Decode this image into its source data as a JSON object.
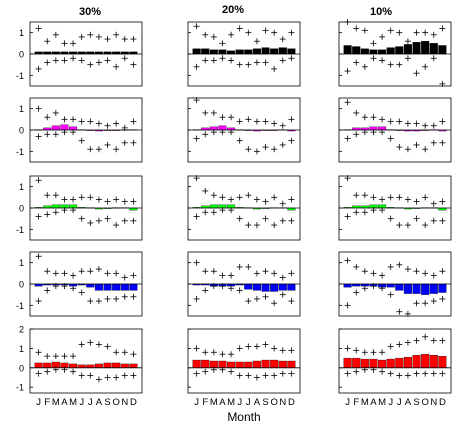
{
  "figure": {
    "column_titles": [
      "30%",
      "20%",
      "10%"
    ],
    "xlabel": "Month",
    "month_ticks": [
      "J",
      "F",
      "M",
      "A",
      "M",
      "J",
      "J",
      "A",
      "S",
      "O",
      "N",
      "D"
    ]
  },
  "chart_data": [
    {
      "type": "bar",
      "column": "30%",
      "row": 1,
      "color": "#000000",
      "ylim": [
        -1.5,
        1.5
      ],
      "yticks": [
        -1,
        0,
        1
      ],
      "categories": [
        "J",
        "F",
        "M",
        "A",
        "M",
        "J",
        "J",
        "A",
        "S",
        "O",
        "N",
        "D"
      ],
      "values": [
        0.1,
        0.1,
        0.1,
        0.1,
        0.1,
        0.1,
        0.1,
        0.1,
        0.1,
        0.1,
        0.1,
        0.1
      ],
      "upper": [
        1.2,
        0.6,
        0.9,
        0.5,
        0.5,
        0.8,
        0.9,
        0.8,
        0.7,
        0.9,
        0.7,
        0.7
      ],
      "lower": [
        -0.7,
        -0.4,
        -0.3,
        -0.3,
        -0.2,
        -0.3,
        -0.5,
        -0.4,
        -0.3,
        -0.6,
        -0.2,
        -0.5
      ]
    },
    {
      "type": "bar",
      "column": "20%",
      "row": 1,
      "color": "#000000",
      "ylim": [
        -1.5,
        1.5
      ],
      "yticks": [
        -1,
        0,
        1
      ],
      "categories": [
        "J",
        "F",
        "M",
        "A",
        "M",
        "J",
        "J",
        "A",
        "S",
        "O",
        "N",
        "D"
      ],
      "values": [
        0.25,
        0.25,
        0.2,
        0.2,
        0.15,
        0.2,
        0.2,
        0.25,
        0.3,
        0.25,
        0.3,
        0.25
      ],
      "upper": [
        1.3,
        0.9,
        0.8,
        0.5,
        0.9,
        1.2,
        1.0,
        0.6,
        1.1,
        1.0,
        0.7,
        1.0
      ],
      "lower": [
        -0.6,
        -0.3,
        -0.3,
        -0.2,
        -0.3,
        -0.5,
        -0.5,
        -0.4,
        -0.4,
        -0.7,
        -0.3,
        -0.2
      ]
    },
    {
      "type": "bar",
      "column": "10%",
      "row": 1,
      "color": "#000000",
      "ylim": [
        -1.5,
        1.5
      ],
      "yticks": [
        -1,
        0,
        1
      ],
      "categories": [
        "J",
        "F",
        "M",
        "A",
        "M",
        "J",
        "J",
        "A",
        "S",
        "O",
        "N",
        "D"
      ],
      "values": [
        0.4,
        0.35,
        0.25,
        0.2,
        0.2,
        0.3,
        0.35,
        0.45,
        0.55,
        0.6,
        0.5,
        0.4
      ],
      "upper": [
        1.5,
        1.2,
        1.1,
        0.5,
        0.8,
        1.1,
        1.0,
        0.6,
        1.0,
        1.0,
        0.9,
        1.2
      ],
      "lower": [
        -0.8,
        -0.4,
        -0.6,
        -0.2,
        -0.3,
        -0.5,
        -0.5,
        -0.2,
        -0.9,
        -0.6,
        -0.2,
        -1.4
      ]
    },
    {
      "type": "bar",
      "column": "30%",
      "row": 2,
      "color": "#ff00ff",
      "ylim": [
        -1.5,
        1.5
      ],
      "yticks": [
        -1,
        0,
        1
      ],
      "categories": [
        "J",
        "F",
        "M",
        "A",
        "M",
        "J",
        "J",
        "A",
        "S",
        "O",
        "N",
        "D"
      ],
      "values": [
        0.02,
        0.1,
        0.2,
        0.25,
        0.15,
        0.02,
        0.0,
        -0.05,
        -0.02,
        0.0,
        0.02,
        0.02
      ],
      "upper": [
        1.0,
        0.6,
        0.8,
        0.5,
        0.5,
        0.4,
        0.4,
        0.3,
        0.2,
        0.3,
        0.1,
        0.4
      ],
      "lower": [
        -0.3,
        -0.2,
        -0.2,
        -0.1,
        -0.1,
        -0.5,
        -0.9,
        -0.9,
        -0.7,
        -0.9,
        -0.6,
        -0.6
      ]
    },
    {
      "type": "bar",
      "column": "20%",
      "row": 2,
      "color": "#ff00ff",
      "ylim": [
        -1.5,
        1.5
      ],
      "yticks": [
        -1,
        0,
        1
      ],
      "categories": [
        "J",
        "F",
        "M",
        "A",
        "M",
        "J",
        "J",
        "A",
        "S",
        "O",
        "N",
        "D"
      ],
      "values": [
        0.02,
        0.1,
        0.15,
        0.2,
        0.1,
        0.02,
        0.0,
        -0.05,
        -0.02,
        0.0,
        0.02,
        -0.05
      ],
      "upper": [
        1.4,
        0.8,
        0.8,
        0.6,
        0.6,
        0.4,
        0.5,
        0.4,
        0.4,
        0.3,
        0.2,
        0.5
      ],
      "lower": [
        -0.4,
        -0.2,
        -0.1,
        -0.1,
        -0.1,
        -0.5,
        -0.9,
        -1.0,
        -0.8,
        -0.9,
        -0.7,
        -0.5
      ]
    },
    {
      "type": "bar",
      "column": "10%",
      "row": 2,
      "color": "#ff00ff",
      "ylim": [
        -1.5,
        1.5
      ],
      "yticks": [
        -1,
        0,
        1
      ],
      "categories": [
        "J",
        "F",
        "M",
        "A",
        "M",
        "J",
        "J",
        "A",
        "S",
        "O",
        "N",
        "D"
      ],
      "values": [
        0.02,
        0.1,
        0.1,
        0.15,
        0.15,
        0.02,
        0.0,
        -0.05,
        -0.05,
        0.0,
        0.02,
        -0.05
      ],
      "upper": [
        1.3,
        0.8,
        0.6,
        0.6,
        0.5,
        0.4,
        0.4,
        0.3,
        0.3,
        0.2,
        0.2,
        0.4
      ],
      "lower": [
        -0.4,
        -0.2,
        -0.1,
        -0.1,
        -0.1,
        -0.4,
        -0.8,
        -0.9,
        -0.7,
        -0.9,
        -0.6,
        -0.6
      ]
    },
    {
      "type": "bar",
      "column": "30%",
      "row": 3,
      "color": "#00ff00",
      "ylim": [
        -1.5,
        1.5
      ],
      "yticks": [
        -1,
        0,
        1
      ],
      "categories": [
        "J",
        "F",
        "M",
        "A",
        "M",
        "J",
        "J",
        "A",
        "S",
        "O",
        "N",
        "D"
      ],
      "values": [
        0.03,
        0.1,
        0.15,
        0.15,
        0.15,
        0.03,
        0.02,
        -0.05,
        -0.02,
        0.02,
        0.02,
        -0.1
      ],
      "upper": [
        1.3,
        0.6,
        0.6,
        0.4,
        0.4,
        0.5,
        0.5,
        0.4,
        0.3,
        0.4,
        0.3,
        0.3
      ],
      "lower": [
        -0.4,
        -0.3,
        -0.2,
        -0.1,
        -0.1,
        -0.5,
        -0.7,
        -0.6,
        -0.5,
        -0.8,
        -0.6,
        -0.6
      ]
    },
    {
      "type": "bar",
      "column": "20%",
      "row": 3,
      "color": "#00ff00",
      "ylim": [
        -1.5,
        1.5
      ],
      "yticks": [
        -1,
        0,
        1
      ],
      "categories": [
        "J",
        "F",
        "M",
        "A",
        "M",
        "J",
        "J",
        "A",
        "S",
        "O",
        "N",
        "D"
      ],
      "values": [
        0.03,
        0.1,
        0.15,
        0.15,
        0.15,
        0.03,
        0.02,
        -0.05,
        -0.02,
        0.02,
        0.02,
        -0.1
      ],
      "upper": [
        1.4,
        0.8,
        0.6,
        0.5,
        0.4,
        0.5,
        0.6,
        0.4,
        0.3,
        0.5,
        0.2,
        0.4
      ],
      "lower": [
        -0.4,
        -0.2,
        -0.2,
        -0.1,
        -0.1,
        -0.5,
        -0.8,
        -0.8,
        -0.5,
        -0.8,
        -0.6,
        -0.6
      ]
    },
    {
      "type": "bar",
      "column": "10%",
      "row": 3,
      "color": "#00ff00",
      "ylim": [
        -1.5,
        1.5
      ],
      "yticks": [
        -1,
        0,
        1
      ],
      "categories": [
        "J",
        "F",
        "M",
        "A",
        "M",
        "J",
        "J",
        "A",
        "S",
        "O",
        "N",
        "D"
      ],
      "values": [
        0.03,
        0.1,
        0.1,
        0.15,
        0.15,
        0.03,
        0.02,
        -0.05,
        -0.02,
        0.02,
        0.02,
        -0.1
      ],
      "upper": [
        1.4,
        0.6,
        0.6,
        0.5,
        0.4,
        0.5,
        0.5,
        0.4,
        0.3,
        0.5,
        0.2,
        0.3
      ],
      "lower": [
        -0.4,
        -0.2,
        -0.2,
        -0.1,
        -0.1,
        -0.5,
        -0.8,
        -0.8,
        -0.5,
        -0.8,
        -0.6,
        -0.6
      ]
    },
    {
      "type": "bar",
      "column": "30%",
      "row": 4,
      "color": "#0000ff",
      "ylim": [
        -1.5,
        1.5
      ],
      "yticks": [
        -1,
        0,
        1
      ],
      "categories": [
        "J",
        "F",
        "M",
        "A",
        "M",
        "J",
        "J",
        "A",
        "S",
        "O",
        "N",
        "D"
      ],
      "values": [
        -0.1,
        -0.05,
        -0.05,
        -0.05,
        -0.1,
        -0.05,
        -0.15,
        -0.3,
        -0.3,
        -0.3,
        -0.3,
        -0.3
      ],
      "upper": [
        1.3,
        0.6,
        0.5,
        0.5,
        0.4,
        0.6,
        0.6,
        0.7,
        0.5,
        0.5,
        0.3,
        0.4
      ],
      "lower": [
        -0.8,
        -0.3,
        -0.1,
        -0.1,
        -0.2,
        -0.4,
        -0.8,
        -0.8,
        -0.7,
        -0.7,
        -0.6,
        -0.6
      ]
    },
    {
      "type": "bar",
      "column": "20%",
      "row": 4,
      "color": "#0000ff",
      "ylim": [
        -1.5,
        1.5
      ],
      "yticks": [
        -1,
        0,
        1
      ],
      "categories": [
        "J",
        "F",
        "M",
        "A",
        "M",
        "J",
        "J",
        "A",
        "S",
        "O",
        "N",
        "D"
      ],
      "values": [
        -0.05,
        -0.05,
        -0.1,
        -0.1,
        -0.1,
        -0.05,
        -0.25,
        -0.3,
        -0.35,
        -0.35,
        -0.3,
        -0.3
      ],
      "upper": [
        1.0,
        0.6,
        0.6,
        0.4,
        0.4,
        0.8,
        0.8,
        0.5,
        0.6,
        0.5,
        0.3,
        0.5
      ],
      "lower": [
        -0.7,
        -0.3,
        -0.1,
        -0.1,
        -0.2,
        -0.3,
        -0.8,
        -0.7,
        -0.6,
        -0.9,
        -0.5,
        -0.8
      ]
    },
    {
      "type": "bar",
      "column": "10%",
      "row": 4,
      "color": "#0000ff",
      "ylim": [
        -1.5,
        1.5
      ],
      "yticks": [
        -1,
        0,
        1
      ],
      "categories": [
        "J",
        "F",
        "M",
        "A",
        "M",
        "J",
        "J",
        "A",
        "S",
        "O",
        "N",
        "D"
      ],
      "values": [
        -0.15,
        -0.1,
        -0.1,
        -0.1,
        -0.15,
        -0.15,
        -0.3,
        -0.45,
        -0.45,
        -0.5,
        -0.45,
        -0.4
      ],
      "upper": [
        1.1,
        0.8,
        0.6,
        0.5,
        0.4,
        0.8,
        0.9,
        0.7,
        0.6,
        0.5,
        0.4,
        0.6
      ],
      "lower": [
        -1.0,
        -0.4,
        -0.2,
        -0.1,
        -0.2,
        -0.5,
        -1.3,
        -1.4,
        -0.9,
        -0.9,
        -0.8,
        -0.7
      ]
    },
    {
      "type": "bar",
      "column": "30%",
      "row": 5,
      "color": "#ff0000",
      "ylim": [
        -1.3,
        2
      ],
      "yticks": [
        -1,
        0,
        1,
        2
      ],
      "categories": [
        "J",
        "F",
        "M",
        "A",
        "M",
        "J",
        "J",
        "A",
        "S",
        "O",
        "N",
        "D"
      ],
      "values": [
        0.25,
        0.25,
        0.3,
        0.25,
        0.2,
        0.15,
        0.15,
        0.2,
        0.25,
        0.25,
        0.2,
        0.2
      ],
      "upper": [
        0.8,
        0.6,
        0.6,
        0.6,
        0.6,
        1.2,
        1.3,
        1.2,
        1.1,
        0.8,
        0.8,
        0.7
      ],
      "lower": [
        -0.3,
        -0.2,
        -0.1,
        -0.1,
        -0.2,
        -0.4,
        -0.4,
        -0.6,
        -0.5,
        -0.5,
        -0.4,
        -0.4
      ]
    },
    {
      "type": "bar",
      "column": "20%",
      "row": 5,
      "color": "#ff0000",
      "ylim": [
        -1.3,
        2
      ],
      "yticks": [
        -1,
        0,
        1,
        2
      ],
      "categories": [
        "J",
        "F",
        "M",
        "A",
        "M",
        "J",
        "J",
        "A",
        "S",
        "O",
        "N",
        "D"
      ],
      "values": [
        0.4,
        0.4,
        0.35,
        0.35,
        0.3,
        0.3,
        0.3,
        0.35,
        0.4,
        0.4,
        0.35,
        0.35
      ],
      "upper": [
        1.0,
        0.8,
        0.8,
        0.7,
        0.7,
        1.0,
        1.1,
        1.1,
        1.2,
        1.0,
        0.9,
        0.9
      ],
      "lower": [
        -0.3,
        -0.2,
        -0.1,
        -0.1,
        -0.2,
        -0.4,
        -0.4,
        -0.5,
        -0.4,
        -0.4,
        -0.3,
        -0.3
      ]
    },
    {
      "type": "bar",
      "column": "10%",
      "row": 5,
      "color": "#ff0000",
      "ylim": [
        -1.3,
        2
      ],
      "yticks": [
        -1,
        0,
        1,
        2
      ],
      "categories": [
        "J",
        "F",
        "M",
        "A",
        "M",
        "J",
        "J",
        "A",
        "S",
        "O",
        "N",
        "D"
      ],
      "values": [
        0.5,
        0.5,
        0.45,
        0.45,
        0.4,
        0.45,
        0.5,
        0.55,
        0.65,
        0.7,
        0.65,
        0.6
      ],
      "upper": [
        1.0,
        0.9,
        0.8,
        0.8,
        0.8,
        1.1,
        1.2,
        1.3,
        1.4,
        1.6,
        1.4,
        1.4
      ],
      "lower": [
        -0.3,
        -0.2,
        -0.1,
        -0.1,
        -0.2,
        -0.3,
        -0.4,
        -0.4,
        -0.3,
        -0.3,
        -0.3,
        -0.3
      ]
    }
  ]
}
